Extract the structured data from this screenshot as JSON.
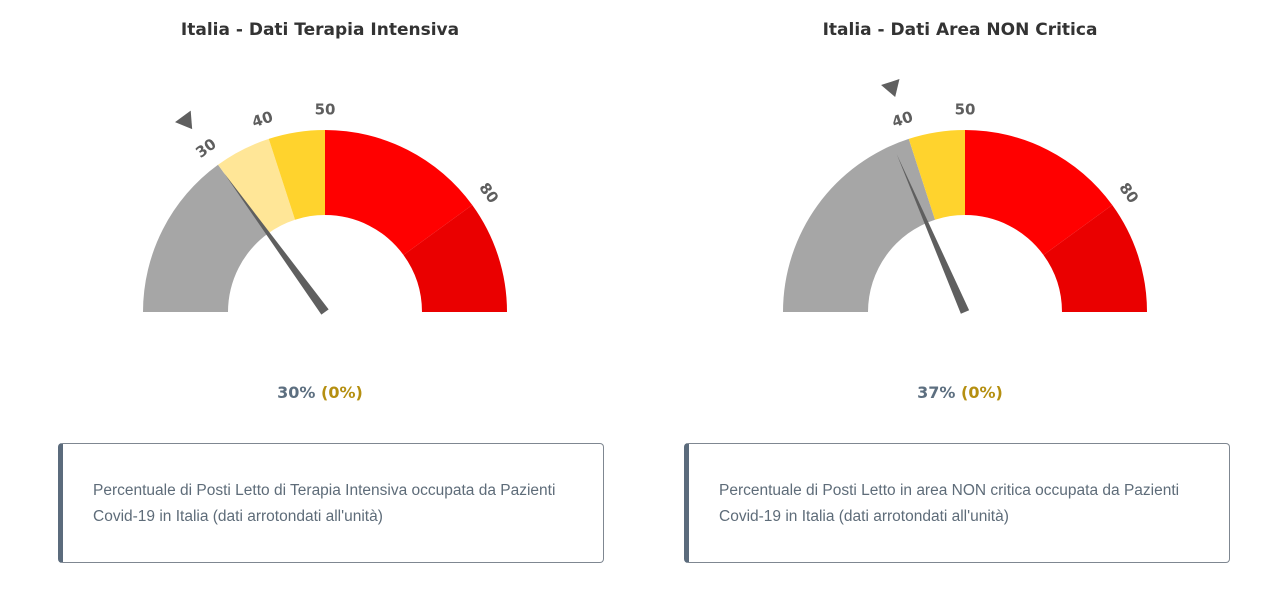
{
  "chart_data": [
    {
      "type": "gauge",
      "title": "Italia - Dati Terapia Intensiva",
      "value": 30,
      "value_text": "30%",
      "delta_text": "(0%)",
      "min": 0,
      "max": 100,
      "bands": [
        {
          "from": 0,
          "to": 30,
          "color": "#a6a6a6"
        },
        {
          "from": 30,
          "to": 40,
          "color": "#ffe697"
        },
        {
          "from": 40,
          "to": 50,
          "color": "#ffd32d"
        },
        {
          "from": 50,
          "to": 80,
          "color": "#ff0000"
        },
        {
          "from": 80,
          "to": 100,
          "color": "#ea0000"
        }
      ],
      "ticks": [
        {
          "value": 30,
          "label": "30"
        },
        {
          "value": 40,
          "label": "40"
        },
        {
          "value": 50,
          "label": "50"
        },
        {
          "value": 80,
          "label": "80"
        }
      ],
      "threshold_marker": 30,
      "description": "Percentuale di Posti Letto di Terapia Intensiva occupata da Pazienti Covid-19 in Italia (dati arrotondati all'unità)"
    },
    {
      "type": "gauge",
      "title": "Italia - Dati Area NON Critica",
      "value": 37,
      "value_text": "37%",
      "delta_text": "(0%)",
      "min": 0,
      "max": 100,
      "bands": [
        {
          "from": 0,
          "to": 40,
          "color": "#a6a6a6"
        },
        {
          "from": 40,
          "to": 50,
          "color": "#ffd32d"
        },
        {
          "from": 50,
          "to": 80,
          "color": "#ff0000"
        },
        {
          "from": 80,
          "to": 100,
          "color": "#ea0000"
        }
      ],
      "ticks": [
        {
          "value": 40,
          "label": "40"
        },
        {
          "value": 50,
          "label": "50"
        },
        {
          "value": 80,
          "label": "80"
        }
      ],
      "threshold_marker": 40,
      "description": "Percentuale di Posti Letto in area NON critica occupata da Pazienti Covid-19 in Italia (dati arrotondati all'unità)"
    }
  ],
  "colors": {
    "needle": "#5f5f5f",
    "value_text": "#5d6f80",
    "delta_text": "#b58f10",
    "description_text": "#5e6c79",
    "box_border": "#7f8791",
    "box_accent": "#5b6b7c"
  }
}
